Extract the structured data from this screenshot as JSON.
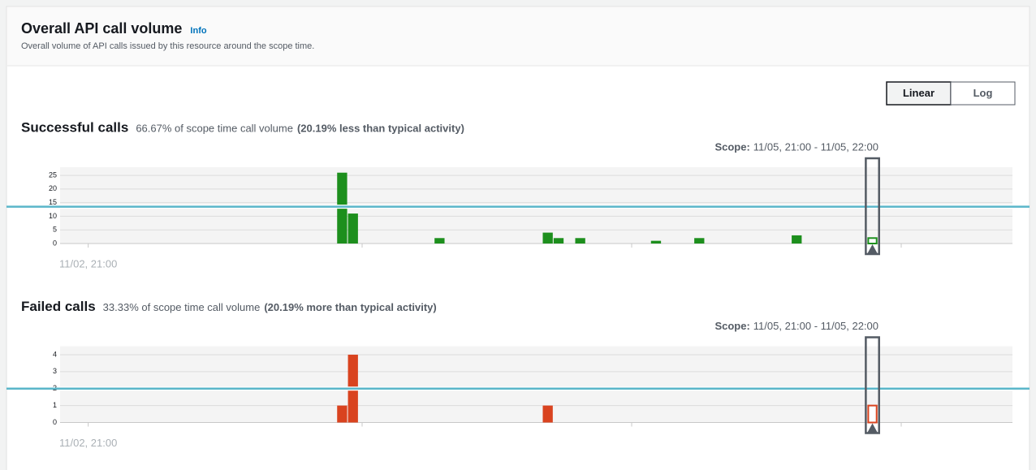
{
  "header": {
    "title": "Overall API call volume",
    "info": "Info",
    "description": "Overall volume of API calls issued by this resource around the scope time."
  },
  "scale_toggle": {
    "options": [
      "Linear",
      "Log"
    ],
    "selected": 0
  },
  "chart_data": [
    {
      "type": "bar",
      "title": "Successful calls",
      "subtitle": "66.67% of scope time call volume",
      "annotation": "(20.19% less than typical activity)",
      "scope": {
        "label": "Scope:",
        "range": "11/05, 21:00 - 11/05, 22:00",
        "x": 72
      },
      "x": [
        23,
        24,
        32,
        42,
        43,
        45,
        52,
        56,
        65,
        72
      ],
      "values": [
        26,
        11,
        2,
        4,
        2,
        2,
        1,
        2,
        3,
        2
      ],
      "color": "#1d8f1d",
      "typical": 13.5,
      "typical_color": "#5ab6c9",
      "xlim": [
        -2.6,
        85.4
      ],
      "xticks": [
        {
          "value": 0,
          "label": "11/02, 21:00"
        }
      ],
      "ylim": [
        0,
        28
      ],
      "yticks": [
        0,
        5,
        10,
        15,
        20,
        25
      ],
      "grid": true
    },
    {
      "type": "bar",
      "title": "Failed calls",
      "subtitle": "33.33% of scope time call volume",
      "annotation": "(20.19% more than typical activity)",
      "scope": {
        "label": "Scope:",
        "range": "11/05, 21:00 - 11/05, 22:00",
        "x": 72
      },
      "x": [
        23,
        24,
        42,
        72
      ],
      "values": [
        1,
        4,
        1,
        1
      ],
      "color": "#d9431f",
      "typical": 2,
      "typical_color": "#5ab6c9",
      "xlim": [
        -2.6,
        85.4
      ],
      "xticks": [
        {
          "value": 0,
          "label": "11/02, 21:00"
        }
      ],
      "ylim": [
        0,
        4.5
      ],
      "yticks": [
        0,
        1,
        2,
        3,
        4
      ],
      "grid": true
    }
  ]
}
